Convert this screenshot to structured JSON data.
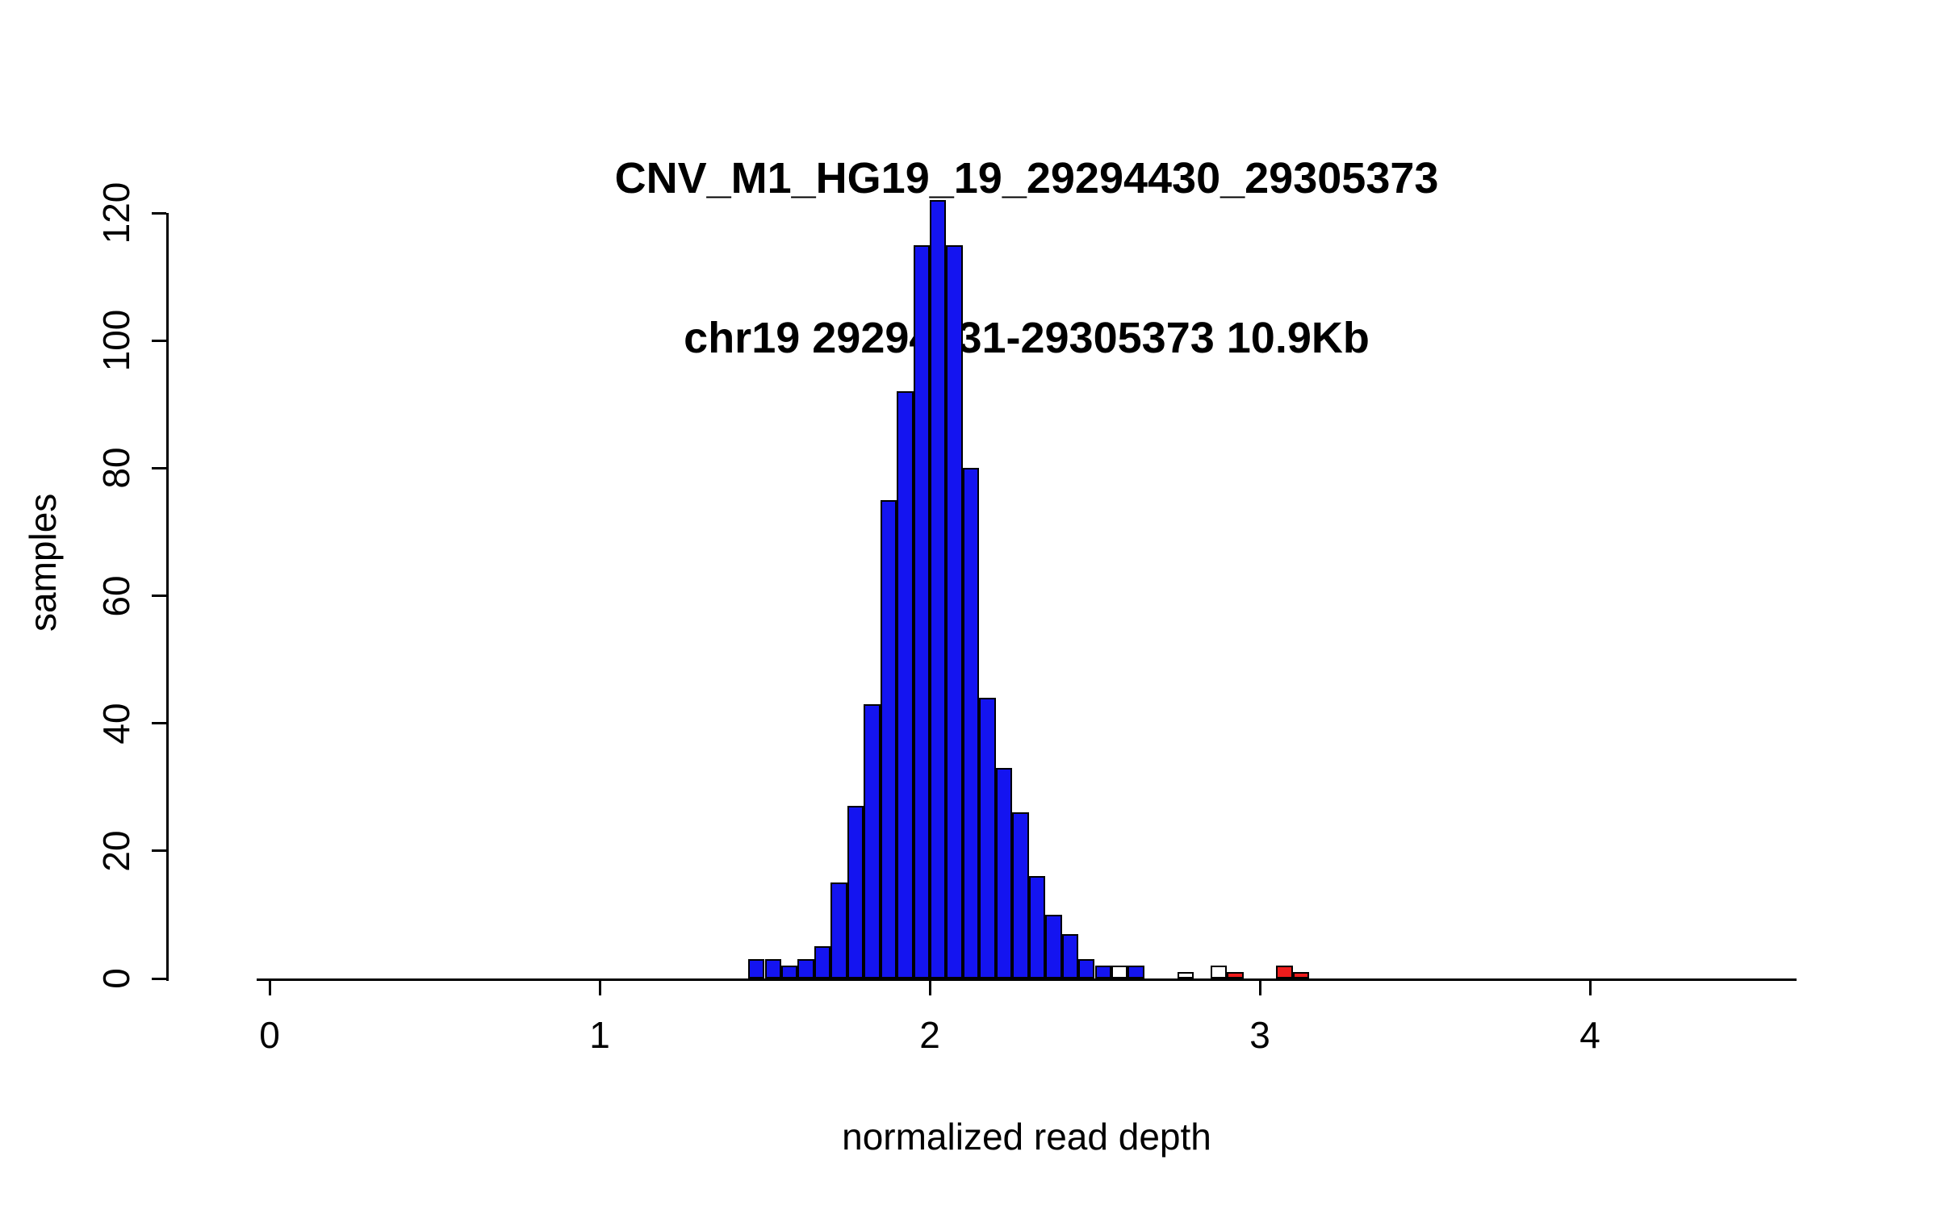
{
  "chart_data": {
    "type": "bar",
    "subtype": "histogram",
    "title": "CNV_M1_HG19_19_29294430_29305373",
    "subtitle": "chr19 29294431-29305373 10.9Kb",
    "xlabel": "normalized read depth",
    "ylabel": "samples",
    "xlim": [
      -0.04,
      4.62
    ],
    "ylim": [
      0,
      122
    ],
    "x_ticks": [
      0,
      1,
      2,
      3,
      4
    ],
    "y_ticks": [
      0,
      20,
      40,
      60,
      80,
      100,
      120
    ],
    "grid": false,
    "legend": "none",
    "bin_width": 0.05,
    "colors": {
      "blue": "#1414f0",
      "white": "#ffffff",
      "red": "#ee1c1c",
      "border": "#000000"
    },
    "bins": [
      {
        "x": 1.45,
        "count": 3,
        "color": "blue"
      },
      {
        "x": 1.5,
        "count": 3,
        "color": "blue"
      },
      {
        "x": 1.55,
        "count": 2,
        "color": "blue"
      },
      {
        "x": 1.6,
        "count": 3,
        "color": "blue"
      },
      {
        "x": 1.65,
        "count": 5,
        "color": "blue"
      },
      {
        "x": 1.7,
        "count": 15,
        "color": "blue"
      },
      {
        "x": 1.75,
        "count": 27,
        "color": "blue"
      },
      {
        "x": 1.8,
        "count": 43,
        "color": "blue"
      },
      {
        "x": 1.85,
        "count": 75,
        "color": "blue"
      },
      {
        "x": 1.9,
        "count": 92,
        "color": "blue"
      },
      {
        "x": 1.95,
        "count": 115,
        "color": "blue"
      },
      {
        "x": 2.0,
        "count": 122,
        "color": "blue"
      },
      {
        "x": 2.05,
        "count": 115,
        "color": "blue"
      },
      {
        "x": 2.1,
        "count": 80,
        "color": "blue"
      },
      {
        "x": 2.15,
        "count": 44,
        "color": "blue"
      },
      {
        "x": 2.2,
        "count": 33,
        "color": "blue"
      },
      {
        "x": 2.25,
        "count": 26,
        "color": "blue"
      },
      {
        "x": 2.3,
        "count": 16,
        "color": "blue"
      },
      {
        "x": 2.35,
        "count": 10,
        "color": "blue"
      },
      {
        "x": 2.4,
        "count": 7,
        "color": "blue"
      },
      {
        "x": 2.45,
        "count": 3,
        "color": "blue"
      },
      {
        "x": 2.5,
        "count": 2,
        "color": "blue"
      },
      {
        "x": 2.55,
        "count": 2,
        "color": "white"
      },
      {
        "x": 2.6,
        "count": 2,
        "color": "blue"
      },
      {
        "x": 2.75,
        "count": 1,
        "color": "white"
      },
      {
        "x": 2.85,
        "count": 2,
        "color": "white"
      },
      {
        "x": 2.9,
        "count": 1,
        "color": "red"
      },
      {
        "x": 3.05,
        "count": 2,
        "color": "red"
      },
      {
        "x": 3.1,
        "count": 1,
        "color": "red"
      }
    ]
  }
}
